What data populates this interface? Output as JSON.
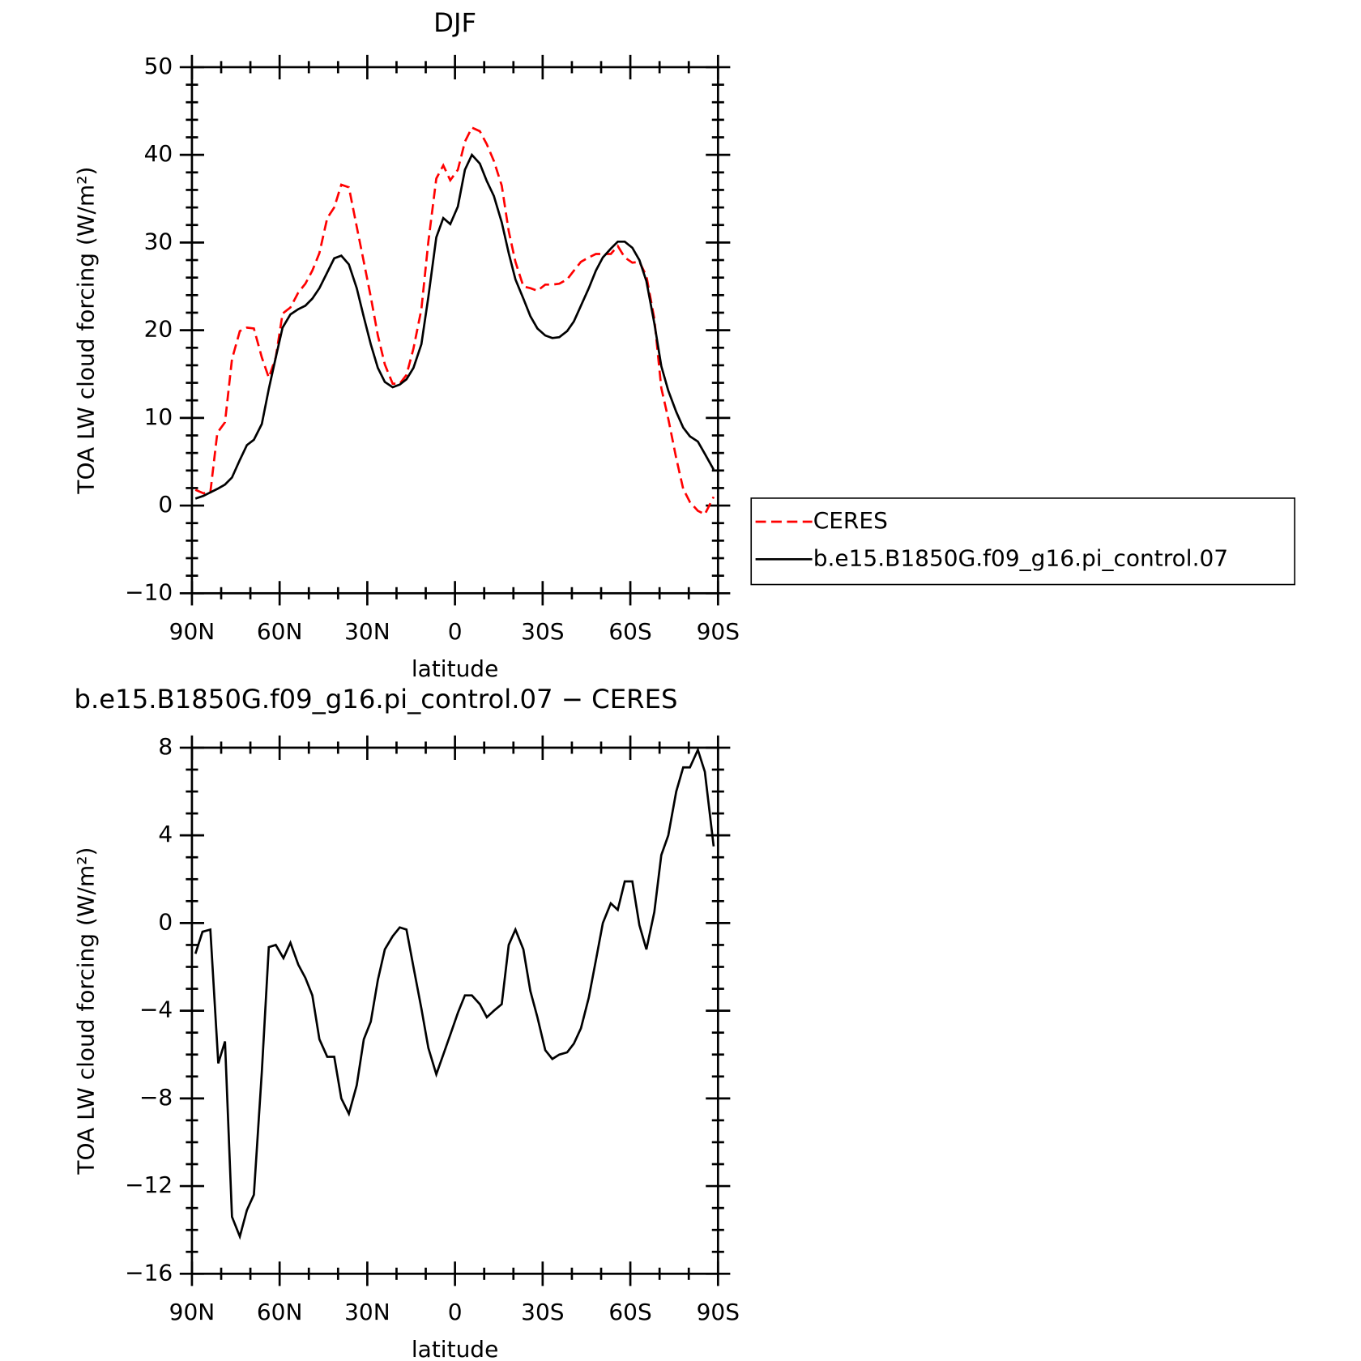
{
  "chart_data": [
    {
      "type": "line",
      "title": "DJF",
      "xlabel": "latitude",
      "ylabel": "TOA LW cloud forcing (W/m²)",
      "x": [
        88.8,
        86.1,
        83.7,
        81.3,
        78.7,
        76.3,
        73.6,
        71.2,
        68.8,
        66.1,
        63.7,
        61.3,
        59.0,
        56.3,
        53.6,
        51.2,
        48.8,
        46.4,
        43.7,
        41.3,
        38.9,
        36.3,
        33.6,
        31.2,
        28.8,
        26.4,
        24.0,
        21.3,
        18.9,
        16.6,
        14.2,
        11.5,
        9.1,
        6.4,
        4.0,
        1.6,
        -1.0,
        -3.4,
        -5.8,
        -8.5,
        -10.9,
        -13.3,
        -16.0,
        -18.4,
        -20.7,
        -23.4,
        -25.8,
        -28.2,
        -30.9,
        -33.3,
        -35.7,
        -38.4,
        -40.7,
        -43.1,
        -45.8,
        -48.2,
        -50.6,
        -53.3,
        -55.7,
        -58.1,
        -60.7,
        -63.1,
        -65.5,
        -68.2,
        -70.6,
        -73.0,
        -75.7,
        -78.1,
        -80.4,
        -83.1,
        -85.5,
        -88.5
      ],
      "series": [
        {
          "name": "CERES",
          "color": "#ff0000",
          "linestyle": "dashed",
          "values": [
            1.8,
            1.4,
            1.5,
            8.3,
            9.5,
            16.7,
            19.9,
            20.3,
            20.2,
            16.9,
            14.6,
            16.9,
            21.9,
            22.6,
            24.3,
            25.3,
            26.8,
            28.8,
            32.8,
            34.0,
            36.6,
            36.3,
            31.8,
            27.8,
            23.8,
            19.4,
            16.1,
            13.9,
            13.9,
            14.9,
            17.9,
            22.4,
            30.1,
            37.3,
            38.8,
            37.1,
            38.3,
            41.5,
            43.1,
            42.7,
            41.2,
            39.3,
            36.5,
            31.3,
            27.8,
            25.0,
            24.8,
            24.5,
            25.2,
            25.2,
            25.3,
            25.8,
            26.8,
            27.8,
            28.3,
            28.7,
            28.7,
            28.7,
            29.6,
            28.3,
            27.7,
            27.8,
            26.2,
            21.3,
            13.4,
            9.9,
            5.4,
            1.9,
            0.4,
            -0.6,
            -1.0,
            1.0
          ]
        },
        {
          "name": "b.e15.B1850G.f09_g16.pi_control.07",
          "color": "#000000",
          "linestyle": "solid",
          "values": [
            0.8,
            1.1,
            1.5,
            1.9,
            2.4,
            3.2,
            5.2,
            6.9,
            7.5,
            9.3,
            13.3,
            16.9,
            20.3,
            21.8,
            22.4,
            22.8,
            23.6,
            24.8,
            26.6,
            28.2,
            28.5,
            27.5,
            24.8,
            21.5,
            18.4,
            15.7,
            14.1,
            13.5,
            13.8,
            14.4,
            15.7,
            18.4,
            23.8,
            30.6,
            32.8,
            32.1,
            34.1,
            38.3,
            40.0,
            39.0,
            37.0,
            35.3,
            32.3,
            28.8,
            25.8,
            23.6,
            21.6,
            20.2,
            19.4,
            19.1,
            19.2,
            19.9,
            21.0,
            22.8,
            24.8,
            26.8,
            28.3,
            29.3,
            30.1,
            30.1,
            29.4,
            28.0,
            25.6,
            20.8,
            15.9,
            13.1,
            10.7,
            8.9,
            7.9,
            7.3,
            5.9,
            4.1
          ]
        }
      ],
      "xlim": [
        90,
        -90
      ],
      "xticks": [
        {
          "value": 90,
          "label": "90N"
        },
        {
          "value": 60,
          "label": "60N"
        },
        {
          "value": 30,
          "label": "30N"
        },
        0,
        {
          "value": -30,
          "label": "30S"
        },
        {
          "value": -60,
          "label": "60S"
        },
        {
          "value": -90,
          "label": "90S"
        }
      ],
      "ylim": [
        -10,
        50
      ],
      "yticks": [
        {
          "value": -10,
          "label": "−10"
        },
        0,
        10,
        20,
        30,
        40,
        50
      ],
      "legend": "right"
    },
    {
      "type": "line",
      "title": "b.e15.B1850G.f09_g16.pi_control.07 − CERES",
      "xlabel": "latitude",
      "ylabel": "TOA LW cloud forcing (W/m²)",
      "x": [
        88.8,
        86.4,
        83.7,
        81.0,
        78.7,
        76.3,
        73.6,
        71.2,
        68.8,
        66.1,
        63.7,
        61.3,
        58.7,
        56.3,
        53.6,
        51.2,
        48.8,
        46.4,
        43.7,
        41.3,
        38.9,
        36.3,
        33.6,
        31.2,
        28.8,
        26.4,
        24.0,
        21.3,
        18.9,
        16.6,
        14.2,
        11.5,
        9.1,
        6.4,
        4.0,
        1.6,
        -1.0,
        -3.4,
        -5.8,
        -8.5,
        -10.9,
        -13.3,
        -16.0,
        -18.4,
        -20.7,
        -23.4,
        -25.8,
        -28.2,
        -30.9,
        -33.3,
        -35.7,
        -38.4,
        -40.7,
        -43.1,
        -45.8,
        -48.2,
        -50.6,
        -53.3,
        -55.7,
        -58.1,
        -60.7,
        -63.1,
        -65.5,
        -68.2,
        -70.6,
        -73.0,
        -75.7,
        -78.1,
        -80.4,
        -83.1,
        -85.5,
        -88.5
      ],
      "values": [
        -1.4,
        -0.4,
        -0.3,
        -6.4,
        -5.4,
        -13.4,
        -14.3,
        -13.1,
        -12.4,
        -6.8,
        -1.1,
        -1.0,
        -1.6,
        -0.9,
        -1.9,
        -2.5,
        -3.3,
        -5.3,
        -6.1,
        -6.1,
        -8.0,
        -8.7,
        -7.4,
        -5.3,
        -4.5,
        -2.6,
        -1.2,
        -0.6,
        -0.2,
        -0.3,
        -2.0,
        -3.9,
        -5.7,
        -6.9,
        -6.0,
        -5.1,
        -4.1,
        -3.3,
        -3.3,
        -3.7,
        -4.3,
        -4.0,
        -3.7,
        -1.0,
        -0.3,
        -1.2,
        -3.1,
        -4.3,
        -5.8,
        -6.2,
        -6.0,
        -5.9,
        -5.5,
        -4.8,
        -3.4,
        -1.7,
        0.0,
        0.9,
        0.6,
        1.9,
        1.9,
        -0.1,
        -1.2,
        0.5,
        3.1,
        4.0,
        6.0,
        7.1,
        7.1,
        7.9,
        6.9,
        3.5
      ],
      "color": "#000000",
      "xlim": [
        90,
        -90
      ],
      "xticks": [
        {
          "value": 90,
          "label": "90N"
        },
        {
          "value": 60,
          "label": "60N"
        },
        {
          "value": 30,
          "label": "30N"
        },
        0,
        {
          "value": -30,
          "label": "30S"
        },
        {
          "value": -60,
          "label": "60S"
        },
        {
          "value": -90,
          "label": "90S"
        }
      ],
      "ylim": [
        -16,
        8
      ],
      "yticks": [
        {
          "value": -16,
          "label": "−16"
        },
        {
          "value": -12,
          "label": "−12"
        },
        {
          "value": -8,
          "label": "−8"
        },
        {
          "value": -4,
          "label": "−4"
        },
        0,
        4,
        8
      ]
    }
  ]
}
